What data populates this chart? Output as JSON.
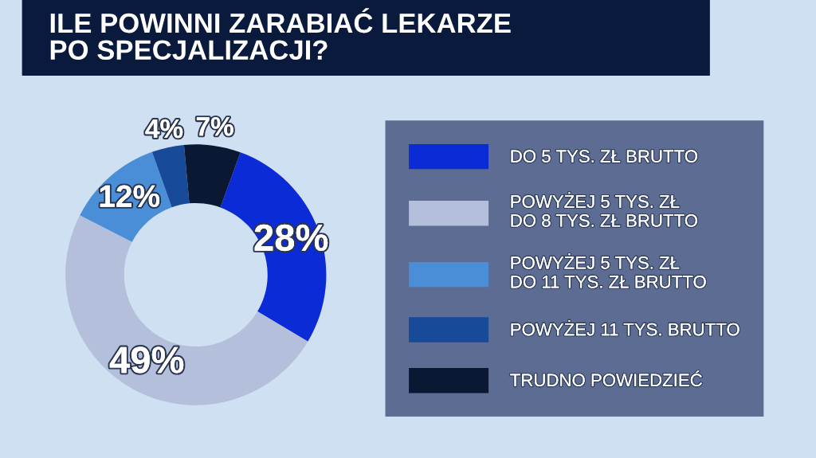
{
  "chart_data": {
    "type": "donut",
    "title": "ILE POWINNI ZARABIAĆ LEKARZE\nPO SPECJALIZACJI?",
    "categories": [
      "DO 5 TYS. ZŁ BRUTTO",
      "POWYŻEJ 5 TYS. ZŁ\nDO 8 TYS. ZŁ BRUTTO",
      "POWYŻEJ 5 TYS. ZŁ\nDO 11 TYS. ZŁ BRUTTO",
      "POWYŻEJ 11 TYS. BRUTTO",
      "TRUDNO POWIEDZIEĆ"
    ],
    "values": [
      28,
      49,
      12,
      4,
      7
    ],
    "colors": [
      "#0b2bd6",
      "#b3bfdb",
      "#4a8ed8",
      "#174a98",
      "#0b1834"
    ],
    "value_labels": [
      "28%",
      "49%",
      "12%",
      "4%",
      "7%"
    ],
    "legend": "right"
  }
}
